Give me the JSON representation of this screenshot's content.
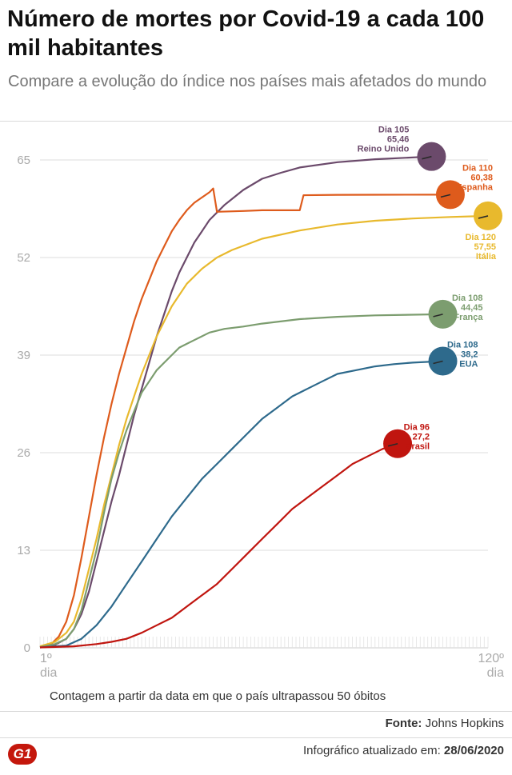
{
  "header": {
    "title": "Número de mortes por Covid-19 a cada 100 mil habitantes",
    "subtitle": "Compare a evolução do índice nos países mais afetados do mundo"
  },
  "footer": {
    "note": "Contagem a partir da data em que o país ultrapassou 50 óbitos",
    "source_label": "Fonte:",
    "source_value": "Johns Hopkins",
    "logo_text": "G1",
    "updated_label": "Infográfico atualizado em:",
    "updated_value": "28/06/2020"
  },
  "chart_data": {
    "type": "line",
    "title": "Número de mortes por Covid-19 a cada 100 mil habitantes",
    "xlabel": "",
    "ylabel": "",
    "xlim": [
      1,
      120
    ],
    "ylim": [
      0,
      65
    ],
    "y_ticks": [
      0,
      13,
      26,
      39,
      52,
      65
    ],
    "x_ticks": [
      {
        "value": 1,
        "label": "1º",
        "sublabel": "dia"
      },
      {
        "value": 120,
        "label": "120º",
        "sublabel": "dia"
      }
    ],
    "grid": true,
    "series": [
      {
        "name": "Reino Unido",
        "color": "#6b4a6b",
        "end_day": 105,
        "end_value": 65.46,
        "day_label": "Dia 105",
        "value_label": "65,46",
        "points": [
          [
            1,
            0.1
          ],
          [
            5,
            0.4
          ],
          [
            8,
            1.2
          ],
          [
            10,
            2.5
          ],
          [
            12,
            4.5
          ],
          [
            14,
            7.5
          ],
          [
            16,
            11.5
          ],
          [
            18,
            15.5
          ],
          [
            20,
            19.5
          ],
          [
            22,
            23
          ],
          [
            24,
            27
          ],
          [
            26,
            31
          ],
          [
            28,
            34.5
          ],
          [
            30,
            38
          ],
          [
            32,
            41.5
          ],
          [
            34,
            44.5
          ],
          [
            36,
            47.5
          ],
          [
            38,
            50
          ],
          [
            40,
            52
          ],
          [
            42,
            54
          ],
          [
            44,
            55.5
          ],
          [
            46,
            57
          ],
          [
            50,
            59
          ],
          [
            55,
            61
          ],
          [
            60,
            62.5
          ],
          [
            65,
            63.3
          ],
          [
            70,
            64
          ],
          [
            80,
            64.7
          ],
          [
            90,
            65.1
          ],
          [
            105,
            65.46
          ]
        ]
      },
      {
        "name": "Espanha",
        "color": "#de5b1c",
        "end_day": 110,
        "end_value": 60.38,
        "day_label": "Dia 110",
        "value_label": "60,38",
        "points": [
          [
            1,
            0.1
          ],
          [
            4,
            0.5
          ],
          [
            6,
            1.5
          ],
          [
            8,
            3.5
          ],
          [
            10,
            7
          ],
          [
            12,
            12
          ],
          [
            14,
            17.5
          ],
          [
            16,
            23
          ],
          [
            18,
            28
          ],
          [
            20,
            32.5
          ],
          [
            22,
            36.5
          ],
          [
            24,
            40
          ],
          [
            26,
            43.5
          ],
          [
            28,
            46.5
          ],
          [
            30,
            49
          ],
          [
            32,
            51.5
          ],
          [
            34,
            53.5
          ],
          [
            36,
            55.5
          ],
          [
            38,
            57
          ],
          [
            40,
            58.3
          ],
          [
            42,
            59.3
          ],
          [
            44,
            60
          ],
          [
            46,
            60.7
          ],
          [
            47,
            61.2
          ],
          [
            48,
            58.1
          ],
          [
            55,
            58.2
          ],
          [
            60,
            58.3
          ],
          [
            65,
            58.3
          ],
          [
            70,
            58.3
          ],
          [
            71,
            60.3
          ],
          [
            80,
            60.35
          ],
          [
            90,
            60.36
          ],
          [
            110,
            60.38
          ]
        ]
      },
      {
        "name": "Itália",
        "color": "#e8b92d",
        "end_day": 120,
        "end_value": 57.55,
        "day_label": "Dia 120",
        "value_label": "57,55",
        "points": [
          [
            1,
            0.2
          ],
          [
            5,
            0.8
          ],
          [
            8,
            2
          ],
          [
            10,
            3.5
          ],
          [
            12,
            6.5
          ],
          [
            14,
            10.5
          ],
          [
            16,
            14.5
          ],
          [
            18,
            19
          ],
          [
            20,
            23
          ],
          [
            22,
            27
          ],
          [
            24,
            30.5
          ],
          [
            26,
            33.5
          ],
          [
            28,
            36.5
          ],
          [
            30,
            39
          ],
          [
            32,
            41.5
          ],
          [
            34,
            43.5
          ],
          [
            36,
            45.5
          ],
          [
            38,
            47
          ],
          [
            40,
            48.5
          ],
          [
            44,
            50.5
          ],
          [
            48,
            52
          ],
          [
            52,
            53
          ],
          [
            60,
            54.5
          ],
          [
            70,
            55.6
          ],
          [
            80,
            56.4
          ],
          [
            90,
            56.9
          ],
          [
            100,
            57.2
          ],
          [
            110,
            57.4
          ],
          [
            120,
            57.55
          ]
        ]
      },
      {
        "name": "França",
        "color": "#7c9d6f",
        "end_day": 108,
        "end_value": 44.45,
        "day_label": "Dia 108",
        "value_label": "44,45",
        "points": [
          [
            1,
            0.1
          ],
          [
            5,
            0.5
          ],
          [
            8,
            1.2
          ],
          [
            10,
            2.5
          ],
          [
            12,
            5
          ],
          [
            14,
            9
          ],
          [
            16,
            13
          ],
          [
            18,
            18
          ],
          [
            20,
            22.5
          ],
          [
            22,
            26
          ],
          [
            24,
            29
          ],
          [
            26,
            31.5
          ],
          [
            28,
            34
          ],
          [
            30,
            35.5
          ],
          [
            32,
            37
          ],
          [
            34,
            38
          ],
          [
            36,
            39
          ],
          [
            38,
            40
          ],
          [
            40,
            40.5
          ],
          [
            42,
            41
          ],
          [
            44,
            41.5
          ],
          [
            46,
            42
          ],
          [
            50,
            42.5
          ],
          [
            55,
            42.8
          ],
          [
            60,
            43.2
          ],
          [
            70,
            43.8
          ],
          [
            80,
            44.1
          ],
          [
            90,
            44.3
          ],
          [
            108,
            44.45
          ]
        ]
      },
      {
        "name": "EUA",
        "color": "#2e6a8c",
        "end_day": 108,
        "end_value": 38.2,
        "day_label": "Dia 108",
        "value_label": "38,2",
        "points": [
          [
            1,
            0.05
          ],
          [
            8,
            0.3
          ],
          [
            12,
            1.2
          ],
          [
            16,
            3
          ],
          [
            20,
            5.5
          ],
          [
            24,
            8.5
          ],
          [
            28,
            11.5
          ],
          [
            32,
            14.5
          ],
          [
            36,
            17.5
          ],
          [
            40,
            20
          ],
          [
            44,
            22.5
          ],
          [
            48,
            24.5
          ],
          [
            52,
            26.5
          ],
          [
            56,
            28.5
          ],
          [
            60,
            30.5
          ],
          [
            64,
            32
          ],
          [
            68,
            33.5
          ],
          [
            72,
            34.5
          ],
          [
            76,
            35.5
          ],
          [
            80,
            36.5
          ],
          [
            85,
            37
          ],
          [
            90,
            37.5
          ],
          [
            95,
            37.8
          ],
          [
            100,
            38
          ],
          [
            108,
            38.2
          ]
        ]
      },
      {
        "name": "Brasil",
        "color": "#c0150f",
        "end_day": 96,
        "end_value": 27.2,
        "day_label": "Dia 96",
        "value_label": "27,2",
        "points": [
          [
            1,
            0.05
          ],
          [
            10,
            0.2
          ],
          [
            16,
            0.5
          ],
          [
            20,
            0.8
          ],
          [
            24,
            1.2
          ],
          [
            28,
            2
          ],
          [
            32,
            3
          ],
          [
            36,
            4
          ],
          [
            40,
            5.5
          ],
          [
            44,
            7
          ],
          [
            48,
            8.5
          ],
          [
            52,
            10.5
          ],
          [
            56,
            12.5
          ],
          [
            60,
            14.5
          ],
          [
            64,
            16.5
          ],
          [
            68,
            18.5
          ],
          [
            72,
            20
          ],
          [
            76,
            21.5
          ],
          [
            80,
            23
          ],
          [
            84,
            24.5
          ],
          [
            88,
            25.5
          ],
          [
            92,
            26.5
          ],
          [
            96,
            27.2
          ]
        ]
      }
    ]
  }
}
